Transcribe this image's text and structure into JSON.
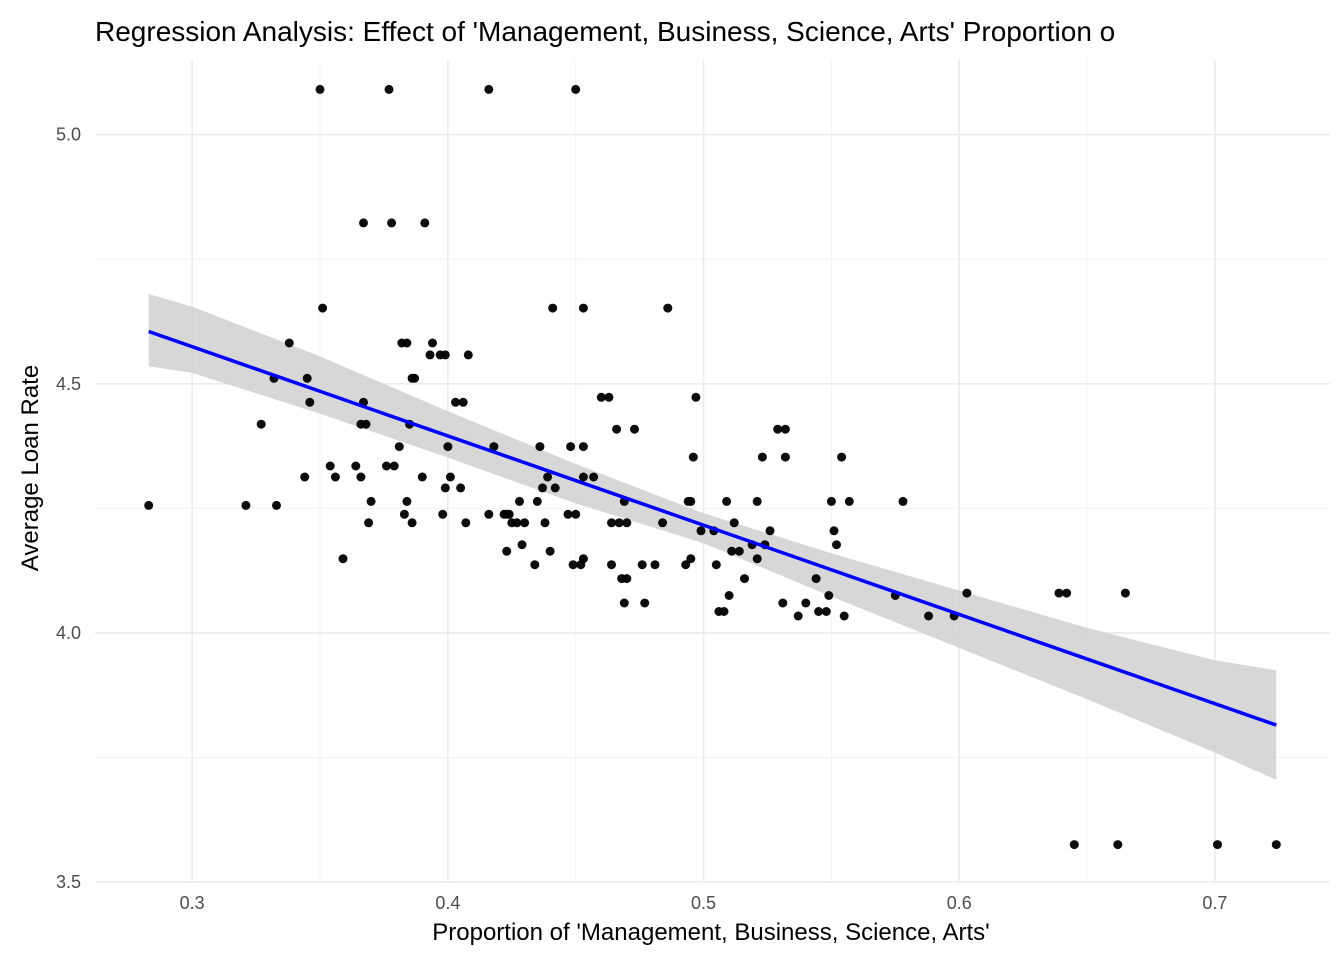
{
  "chart_data": {
    "type": "scatter",
    "title": "Regression Analysis: Effect of 'Management, Business, Science, Arts' Proportion o",
    "xlabel": "Proportion of 'Management, Business, Science, Arts'",
    "ylabel": "Average Loan Rate",
    "xlim": [
      0.262,
      0.745
    ],
    "ylim": [
      3.5,
      5.15
    ],
    "x_ticks": [
      0.3,
      0.4,
      0.5,
      0.6,
      0.7
    ],
    "x_tick_labels": [
      "0.3",
      "0.4",
      "0.5",
      "0.6",
      "0.7"
    ],
    "y_ticks": [
      3.5,
      4.0,
      4.5,
      5.0
    ],
    "y_tick_labels": [
      "3.5",
      "4.0",
      "4.5",
      "5.0"
    ],
    "grid": true,
    "series": [
      {
        "points": [
          [
            0.283,
            4.256
          ],
          [
            0.321,
            4.256
          ],
          [
            0.327,
            4.419
          ],
          [
            0.332,
            4.511
          ],
          [
            0.333,
            4.256
          ],
          [
            0.338,
            4.582
          ],
          [
            0.344,
            4.313
          ],
          [
            0.345,
            4.511
          ],
          [
            0.346,
            4.463
          ],
          [
            0.35,
            5.091
          ],
          [
            0.351,
            4.652
          ],
          [
            0.354,
            4.335
          ],
          [
            0.356,
            4.313
          ],
          [
            0.359,
            4.149
          ],
          [
            0.364,
            4.335
          ],
          [
            0.366,
            4.313
          ],
          [
            0.366,
            4.419
          ],
          [
            0.367,
            4.463
          ],
          [
            0.367,
            4.823
          ],
          [
            0.368,
            4.419
          ],
          [
            0.369,
            4.221
          ],
          [
            0.37,
            4.264
          ],
          [
            0.376,
            4.335
          ],
          [
            0.377,
            5.091
          ],
          [
            0.378,
            4.823
          ],
          [
            0.379,
            4.335
          ],
          [
            0.381,
            4.374
          ],
          [
            0.382,
            4.582
          ],
          [
            0.383,
            4.238
          ],
          [
            0.384,
            4.582
          ],
          [
            0.384,
            4.264
          ],
          [
            0.385,
            4.419
          ],
          [
            0.386,
            4.221
          ],
          [
            0.386,
            4.511
          ],
          [
            0.387,
            4.511
          ],
          [
            0.39,
            4.313
          ],
          [
            0.391,
            4.823
          ],
          [
            0.393,
            4.558
          ],
          [
            0.394,
            4.582
          ],
          [
            0.397,
            4.558
          ],
          [
            0.398,
            4.238
          ],
          [
            0.399,
            4.558
          ],
          [
            0.399,
            4.291
          ],
          [
            0.4,
            4.374
          ],
          [
            0.401,
            4.313
          ],
          [
            0.403,
            4.463
          ],
          [
            0.405,
            4.291
          ],
          [
            0.406,
            4.463
          ],
          [
            0.407,
            4.221
          ],
          [
            0.408,
            4.558
          ],
          [
            0.416,
            5.091
          ],
          [
            0.416,
            4.238
          ],
          [
            0.418,
            4.374
          ],
          [
            0.422,
            4.238
          ],
          [
            0.423,
            4.164
          ],
          [
            0.423,
            4.238
          ],
          [
            0.424,
            4.238
          ],
          [
            0.425,
            4.221
          ],
          [
            0.427,
            4.221
          ],
          [
            0.428,
            4.264
          ],
          [
            0.429,
            4.177
          ],
          [
            0.43,
            4.221
          ],
          [
            0.434,
            4.137
          ],
          [
            0.435,
            4.264
          ],
          [
            0.436,
            4.374
          ],
          [
            0.437,
            4.291
          ],
          [
            0.438,
            4.221
          ],
          [
            0.439,
            4.313
          ],
          [
            0.44,
            4.164
          ],
          [
            0.441,
            4.652
          ],
          [
            0.442,
            4.291
          ],
          [
            0.447,
            4.238
          ],
          [
            0.448,
            4.374
          ],
          [
            0.449,
            4.137
          ],
          [
            0.45,
            4.238
          ],
          [
            0.45,
            5.091
          ],
          [
            0.452,
            4.137
          ],
          [
            0.453,
            4.149
          ],
          [
            0.453,
            4.374
          ],
          [
            0.453,
            4.313
          ],
          [
            0.453,
            4.652
          ],
          [
            0.457,
            4.313
          ],
          [
            0.46,
            4.473
          ],
          [
            0.463,
            4.473
          ],
          [
            0.464,
            4.137
          ],
          [
            0.464,
            4.221
          ],
          [
            0.466,
            4.409
          ],
          [
            0.467,
            4.221
          ],
          [
            0.468,
            4.109
          ],
          [
            0.469,
            4.06
          ],
          [
            0.469,
            4.264
          ],
          [
            0.47,
            4.109
          ],
          [
            0.47,
            4.221
          ],
          [
            0.473,
            4.409
          ],
          [
            0.476,
            4.137
          ],
          [
            0.477,
            4.06
          ],
          [
            0.481,
            4.137
          ],
          [
            0.484,
            4.221
          ],
          [
            0.486,
            4.652
          ],
          [
            0.493,
            4.137
          ],
          [
            0.494,
            4.264
          ],
          [
            0.495,
            4.264
          ],
          [
            0.495,
            4.149
          ],
          [
            0.496,
            4.353
          ],
          [
            0.497,
            4.473
          ],
          [
            0.499,
            4.205
          ],
          [
            0.504,
            4.205
          ],
          [
            0.505,
            4.137
          ],
          [
            0.506,
            4.043
          ],
          [
            0.508,
            4.043
          ],
          [
            0.509,
            4.264
          ],
          [
            0.51,
            4.075
          ],
          [
            0.511,
            4.164
          ],
          [
            0.512,
            4.221
          ],
          [
            0.514,
            4.164
          ],
          [
            0.516,
            4.109
          ],
          [
            0.519,
            4.177
          ],
          [
            0.521,
            4.149
          ],
          [
            0.521,
            4.264
          ],
          [
            0.523,
            4.353
          ],
          [
            0.524,
            4.177
          ],
          [
            0.526,
            4.205
          ],
          [
            0.529,
            4.409
          ],
          [
            0.531,
            4.06
          ],
          [
            0.532,
            4.353
          ],
          [
            0.532,
            4.409
          ],
          [
            0.537,
            4.034
          ],
          [
            0.54,
            4.06
          ],
          [
            0.544,
            4.109
          ],
          [
            0.545,
            4.043
          ],
          [
            0.548,
            4.043
          ],
          [
            0.549,
            4.075
          ],
          [
            0.55,
            4.264
          ],
          [
            0.551,
            4.205
          ],
          [
            0.552,
            4.177
          ],
          [
            0.554,
            4.353
          ],
          [
            0.555,
            4.034
          ],
          [
            0.557,
            4.264
          ],
          [
            0.575,
            4.075
          ],
          [
            0.578,
            4.264
          ],
          [
            0.588,
            4.034
          ],
          [
            0.598,
            4.034
          ],
          [
            0.603,
            4.08
          ],
          [
            0.645,
            3.575
          ],
          [
            0.662,
            3.575
          ],
          [
            0.639,
            4.08
          ],
          [
            0.642,
            4.08
          ],
          [
            0.665,
            4.08
          ],
          [
            0.701,
            3.575
          ],
          [
            0.724,
            3.575
          ]
        ]
      }
    ],
    "regression_line": {
      "x": [
        0.283,
        0.724
      ],
      "y": [
        4.605,
        3.815
      ]
    },
    "confidence_band": {
      "x": [
        0.283,
        0.3,
        0.35,
        0.4,
        0.45,
        0.5,
        0.55,
        0.6,
        0.65,
        0.7,
        0.724
      ],
      "lower": [
        4.535,
        4.522,
        4.44,
        4.352,
        4.26,
        4.18,
        4.073,
        3.97,
        3.867,
        3.76,
        3.705
      ],
      "upper": [
        4.68,
        4.655,
        4.555,
        4.445,
        4.339,
        4.24,
        4.16,
        4.085,
        4.01,
        3.945,
        3.925
      ]
    },
    "colors": {
      "points": "#000000",
      "line": "#0000ff",
      "band": "#d3d3d3"
    }
  }
}
